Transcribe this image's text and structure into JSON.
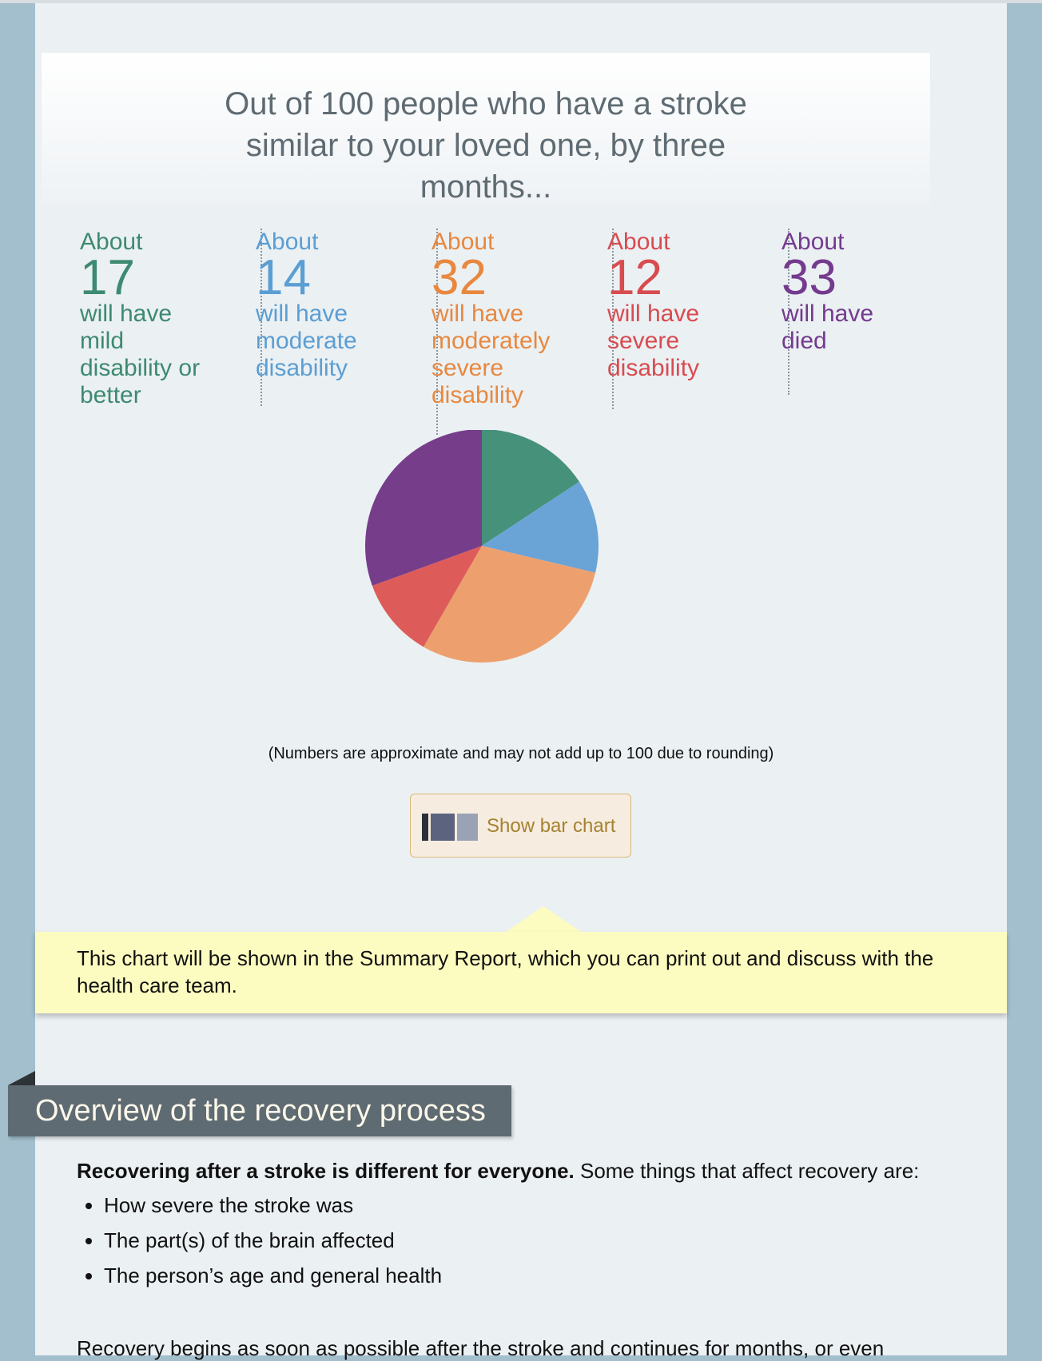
{
  "header": {
    "headline": "Out of 100 people who have a stroke similar to your loved one, by three months..."
  },
  "stats": [
    {
      "about": "About",
      "number": "17",
      "desc": "will have mild disability or better",
      "color": "#3d8a70"
    },
    {
      "about": "About",
      "number": "14",
      "desc": "will have moderate disability",
      "color": "#5b9ed3"
    },
    {
      "about": "About",
      "number": "32",
      "desc": "will have moderately severe disability",
      "color": "#e8883f"
    },
    {
      "about": "About",
      "number": "12",
      "desc": "will have severe disability",
      "color": "#d84b4f"
    },
    {
      "about": "About",
      "number": "33",
      "desc": "will have died",
      "color": "#743a8e"
    }
  ],
  "chart_data": {
    "type": "pie",
    "slices": [
      {
        "value": 17,
        "color": "#46917a"
      },
      {
        "value": 14,
        "color": "#6aa3d6"
      },
      {
        "value": 32,
        "color": "#eda06e"
      },
      {
        "value": 12,
        "color": "#dd5c5a"
      },
      {
        "value": 33,
        "color": "#763d8b"
      }
    ]
  },
  "note": "(Numbers are approximate and may not add up to 100 due to rounding)",
  "bar_button": {
    "label": "Show bar chart",
    "icon": "bar-chart-icon"
  },
  "callout": {
    "text": "This chart will be shown in the Summary Report, which you can print out and discuss with the health care team."
  },
  "section": {
    "title": "Overview of the recovery process"
  },
  "body": {
    "lead_bold": "Recovering after a stroke is different for everyone.",
    "lead_rest": " Some things that affect recovery are:",
    "bullets": [
      "How severe the stroke was",
      "The part(s) of the brain affected",
      "The person’s age and general health"
    ],
    "cut_line": "Recovery begins as soon as possible after the stroke and continues for months, or even"
  }
}
